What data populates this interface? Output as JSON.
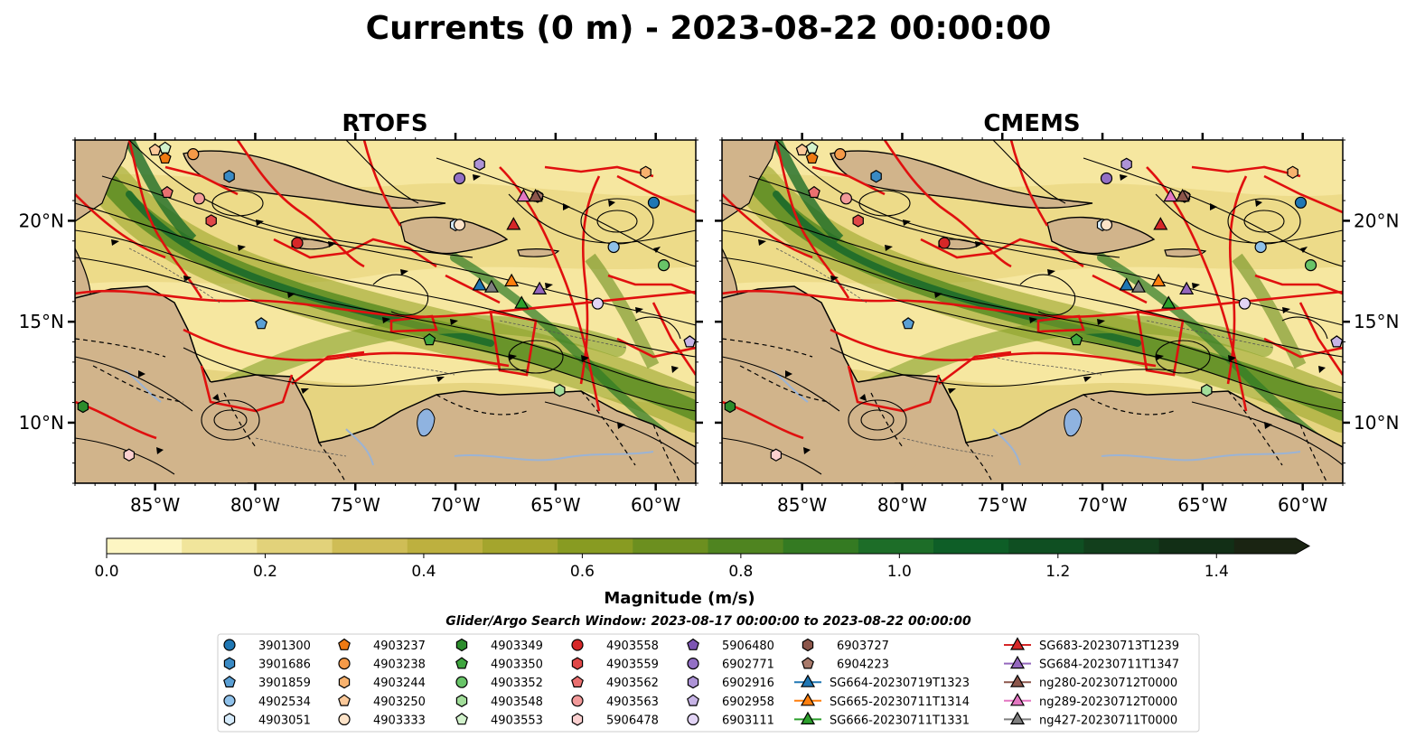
{
  "title": "Currents (0 m) - 2023-08-22 00:00:00",
  "panels": [
    {
      "title": "RTOFS"
    },
    {
      "title": "CMEMS"
    }
  ],
  "chart_data": {
    "type": "heatmap",
    "map_extent": {
      "lon": [
        -89.0,
        -58.0
      ],
      "lat": [
        7.0,
        24.0
      ]
    },
    "x_ticks": [
      "85°W",
      "80°W",
      "75°W",
      "70°W",
      "65°W",
      "60°W"
    ],
    "x_tick_values": [
      -85,
      -80,
      -75,
      -70,
      -65,
      -60
    ],
    "y_ticks": [
      "10°N",
      "15°N",
      "20°N"
    ],
    "y_tick_values": [
      10,
      15,
      20
    ],
    "colorbar": {
      "label": "Magnitude (m/s)",
      "range": [
        0.0,
        1.5
      ],
      "extend": "max",
      "ticks": [
        "0.0",
        "0.2",
        "0.4",
        "0.6",
        "0.8",
        "1.0",
        "1.2",
        "1.4"
      ],
      "tick_values": [
        0.0,
        0.2,
        0.4,
        0.6,
        0.8,
        1.0,
        1.2,
        1.4
      ],
      "colors": [
        "#fdf6c3",
        "#f1e59b",
        "#e2d27a",
        "#cfbd56",
        "#bdb03f",
        "#a4a52d",
        "#889b22",
        "#6c8f1f",
        "#4f8420",
        "#347a22",
        "#1d6d28",
        "#0e5e27",
        "#0f4f22",
        "#123f1c",
        "#122f16",
        "#1a2412"
      ]
    },
    "legend_title": "Glider/Argo Search Window: 2023-08-17 00:00:00 to 2023-08-22 00:00:00",
    "legend_columns": [
      [
        {
          "label": "3901300",
          "marker": "circle",
          "color": "#1f77b4"
        },
        {
          "label": "3901686",
          "marker": "hexagon",
          "color": "#3a8ac4"
        },
        {
          "label": "3901859",
          "marker": "pentagon",
          "color": "#5a9fd4"
        },
        {
          "label": "4902534",
          "marker": "circle",
          "color": "#8fc1ea"
        },
        {
          "label": "4903051",
          "marker": "hexagon",
          "color": "#d6ebfb"
        }
      ],
      [
        {
          "label": "4903237",
          "marker": "pentagon",
          "color": "#ef7a12"
        },
        {
          "label": "4903238",
          "marker": "circle",
          "color": "#f59a48"
        },
        {
          "label": "4903244",
          "marker": "hexagon",
          "color": "#f8b26e"
        },
        {
          "label": "4903250",
          "marker": "pentagon",
          "color": "#fbc99a"
        },
        {
          "label": "4903333",
          "marker": "circle",
          "color": "#fde3c8"
        }
      ],
      [
        {
          "label": "4903349",
          "marker": "hexagon",
          "color": "#2c8c2c"
        },
        {
          "label": "4903350",
          "marker": "pentagon",
          "color": "#3fa63f"
        },
        {
          "label": "4903352",
          "marker": "circle",
          "color": "#68c468"
        },
        {
          "label": "4903548",
          "marker": "hexagon",
          "color": "#a2dd9a"
        },
        {
          "label": "4903553",
          "marker": "pentagon",
          "color": "#d2f2cc"
        }
      ],
      [
        {
          "label": "4903558",
          "marker": "circle",
          "color": "#d62728"
        },
        {
          "label": "4903559",
          "marker": "hexagon",
          "color": "#e04848"
        },
        {
          "label": "4903562",
          "marker": "pentagon",
          "color": "#ea7070"
        },
        {
          "label": "4903563",
          "marker": "circle",
          "color": "#f29a9a"
        },
        {
          "label": "5906478",
          "marker": "hexagon",
          "color": "#fbd0d0"
        }
      ],
      [
        {
          "label": "5906480",
          "marker": "pentagon",
          "color": "#7d55b3"
        },
        {
          "label": "6902771",
          "marker": "circle",
          "color": "#9370c5"
        },
        {
          "label": "6902916",
          "marker": "hexagon",
          "color": "#ad93d6"
        },
        {
          "label": "6902958",
          "marker": "pentagon",
          "color": "#c7b4e6"
        },
        {
          "label": "6903111",
          "marker": "circle",
          "color": "#e2d4f5"
        }
      ],
      [
        {
          "label": "6903727",
          "marker": "hexagon",
          "color": "#8c564b"
        },
        {
          "label": "6904223",
          "marker": "pentagon",
          "color": "#a97a6b"
        },
        {
          "label": "SG664-20230719T1323",
          "marker": "triangle",
          "color": "#1f77b4",
          "line": true
        },
        {
          "label": "SG665-20230711T1314",
          "marker": "triangle",
          "color": "#ff7f0e",
          "line": true
        },
        {
          "label": "SG666-20230711T1331",
          "marker": "triangle",
          "color": "#2ca02c",
          "line": true
        }
      ],
      [
        {
          "label": "SG683-20230713T1239",
          "marker": "triangle",
          "color": "#d62728",
          "line": true
        },
        {
          "label": "SG684-20230711T1347",
          "marker": "triangle",
          "color": "#9467bd",
          "line": true
        },
        {
          "label": "ng280-20230712T0000",
          "marker": "triangle",
          "color": "#8c564b",
          "line": true
        },
        {
          "label": "ng289-20230712T0000",
          "marker": "triangle",
          "color": "#e377c2",
          "line": true
        },
        {
          "label": "ng427-20230711T0000",
          "marker": "triangle",
          "color": "#7f7f7f",
          "line": true
        }
      ]
    ],
    "markers": [
      {
        "label": "3901300",
        "lon": -60.1,
        "lat": 20.9
      },
      {
        "label": "3901686",
        "lon": -81.3,
        "lat": 22.2
      },
      {
        "label": "3901859",
        "lon": -79.7,
        "lat": 14.9
      },
      {
        "label": "4902534",
        "lon": -62.1,
        "lat": 18.7
      },
      {
        "label": "4903051",
        "lon": -70.0,
        "lat": 19.8
      },
      {
        "label": "4903237",
        "lon": -84.5,
        "lat": 23.1
      },
      {
        "label": "4903238",
        "lon": -83.1,
        "lat": 23.3
      },
      {
        "label": "4903244",
        "lon": -60.5,
        "lat": 22.4
      },
      {
        "label": "4903250",
        "lon": -85.0,
        "lat": 23.5
      },
      {
        "label": "4903333",
        "lon": -69.8,
        "lat": 19.8
      },
      {
        "label": "4903349",
        "lon": -88.6,
        "lat": 10.8
      },
      {
        "label": "4903350",
        "lon": -71.3,
        "lat": 14.1
      },
      {
        "label": "4903352",
        "lon": -59.6,
        "lat": 17.8
      },
      {
        "label": "4903548",
        "lon": -64.8,
        "lat": 11.6
      },
      {
        "label": "4903553",
        "lon": -84.5,
        "lat": 23.6
      },
      {
        "label": "4903558",
        "lon": -77.9,
        "lat": 18.9
      },
      {
        "label": "4903559",
        "lon": -82.2,
        "lat": 20.0
      },
      {
        "label": "4903562",
        "lon": -84.4,
        "lat": 21.4
      },
      {
        "label": "4903563",
        "lon": -82.8,
        "lat": 21.1
      },
      {
        "label": "5906478",
        "lon": -86.3,
        "lat": 8.4
      },
      {
        "label": "5906480",
        "lon": -58.3,
        "lat": 14.0
      },
      {
        "label": "6902771",
        "lon": -69.8,
        "lat": 22.1
      },
      {
        "label": "6902916",
        "lon": -68.8,
        "lat": 22.8
      },
      {
        "label": "6902958",
        "lon": -58.3,
        "lat": 14.0
      },
      {
        "label": "6903111",
        "lon": -62.9,
        "lat": 15.9
      },
      {
        "label": "6903727",
        "lon": -65.9,
        "lat": 21.2
      },
      {
        "label": "6904223",
        "lon": -65.9,
        "lat": 21.2
      },
      {
        "label": "SG664-20230719T1323",
        "lon": -68.8,
        "lat": 16.8
      },
      {
        "label": "SG665-20230711T1314",
        "lon": -67.2,
        "lat": 17.0
      },
      {
        "label": "SG666-20230711T1331",
        "lon": -66.7,
        "lat": 15.9
      },
      {
        "label": "SG683-20230713T1239",
        "lon": -67.1,
        "lat": 19.8
      },
      {
        "label": "SG684-20230711T1347",
        "lon": -65.8,
        "lat": 16.6
      },
      {
        "label": "ng280-20230712T0000",
        "lon": -66.0,
        "lat": 21.2
      },
      {
        "label": "ng289-20230712T0000",
        "lon": -66.6,
        "lat": 21.2
      },
      {
        "label": "ng427-20230711T0000",
        "lon": -68.2,
        "lat": 16.7
      }
    ]
  }
}
